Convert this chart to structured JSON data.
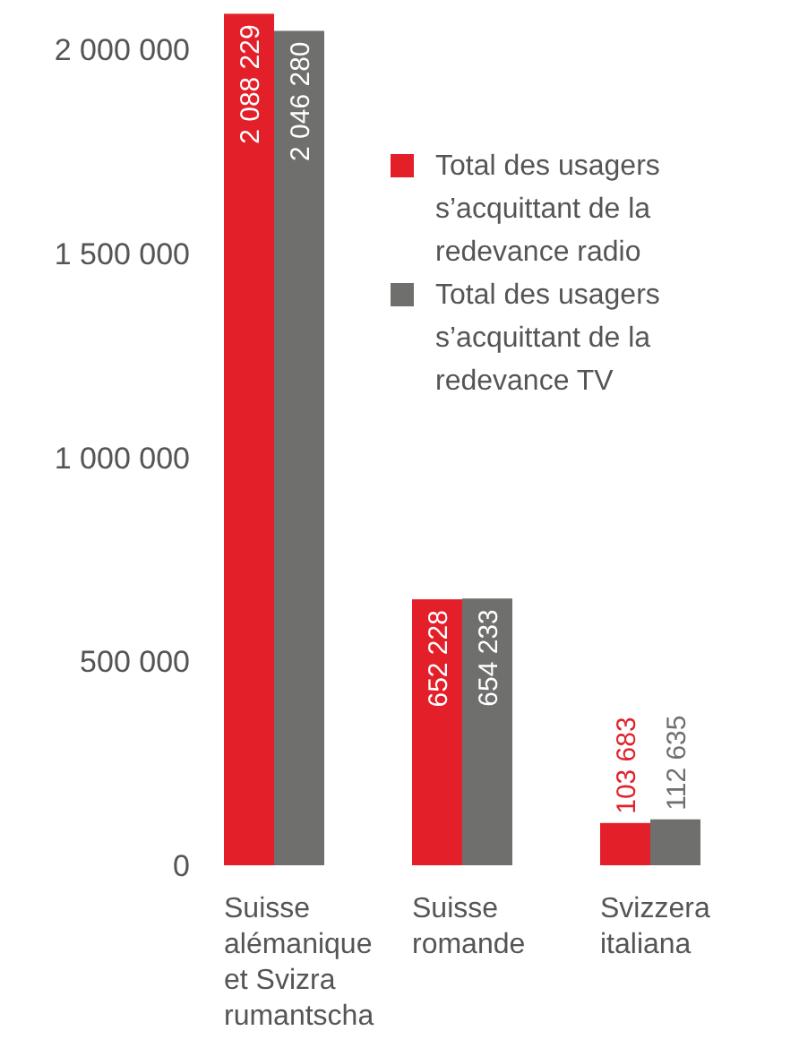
{
  "chart_data": {
    "type": "bar",
    "categories": [
      "Suisse alémanique et Svizra rumantscha",
      "Suisse romande",
      "Svizzera italiana"
    ],
    "series": [
      {
        "name": "Total des usagers s’acquittant de la redevance radio",
        "color": "#e3202a",
        "values": [
          2088229,
          652228,
          103683
        ],
        "value_labels": [
          "2 088 229",
          "652 228",
          "103 683"
        ]
      },
      {
        "name": "Total des usagers s’acquittant de la redevance TV",
        "color": "#6f6f6e",
        "values": [
          2046280,
          654233,
          112635
        ],
        "value_labels": [
          "2 046 280",
          "654 233",
          "112 635"
        ]
      }
    ],
    "ylim": [
      0,
      2100000
    ],
    "yticks": [
      {
        "value": 0,
        "label": "0"
      },
      {
        "value": 500000,
        "label": "500 000"
      },
      {
        "value": 1000000,
        "label": "1 000 000"
      },
      {
        "value": 1500000,
        "label": "1 500 000"
      },
      {
        "value": 2000000,
        "label": "2 000 000"
      }
    ],
    "grid": false,
    "legend": "top right"
  }
}
